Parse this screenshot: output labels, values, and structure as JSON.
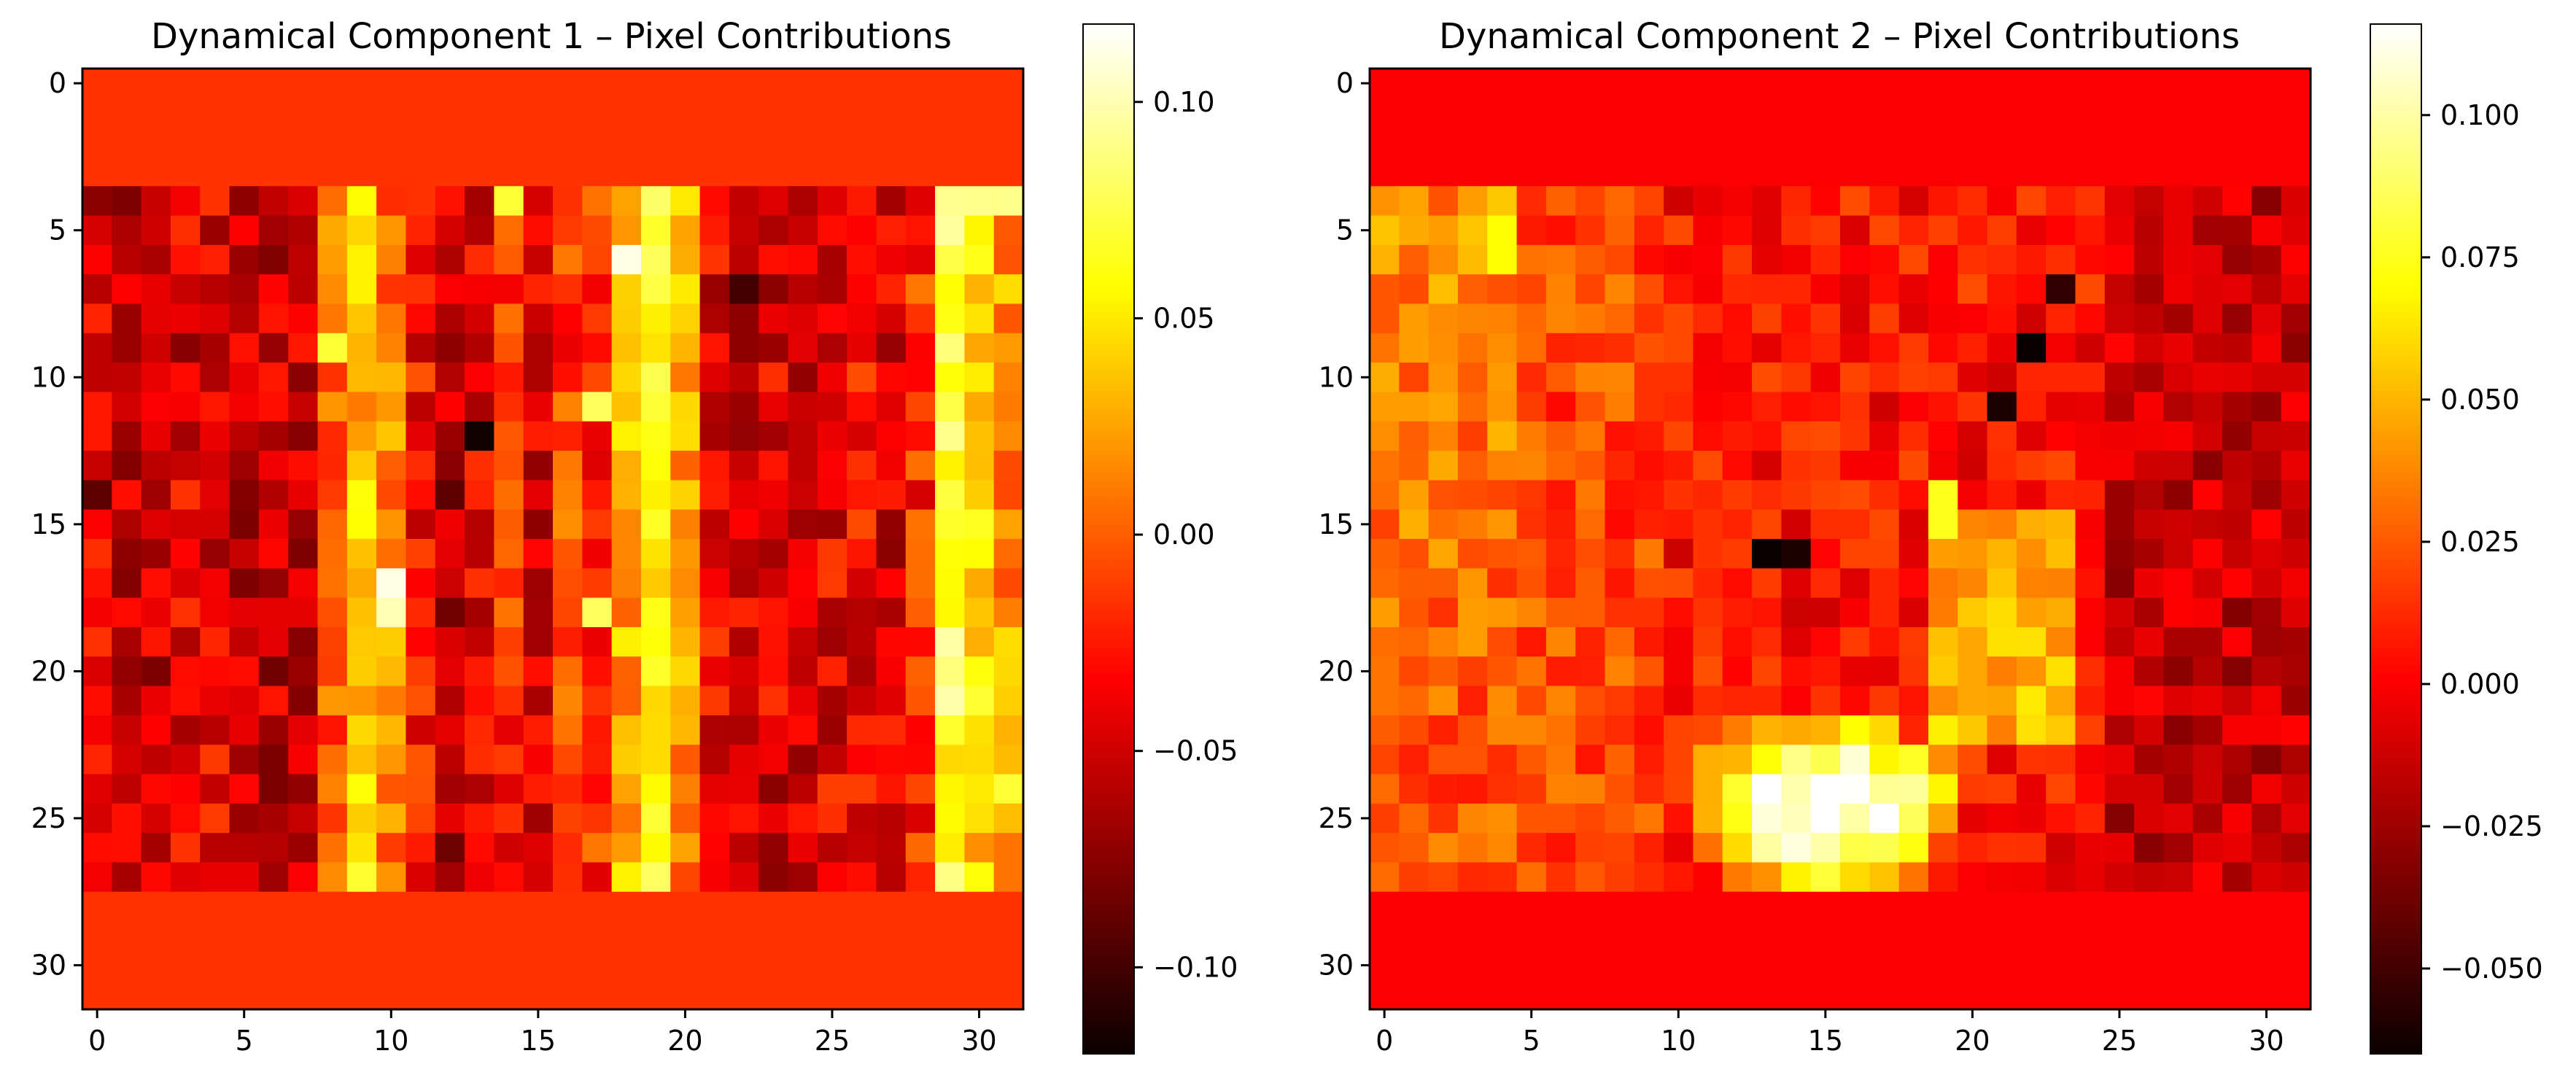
{
  "chart_data": [
    {
      "type": "heatmap",
      "title": "Dynamical Component 1 – Pixel Contributions",
      "colormap": "hot",
      "grid_size": [
        32,
        32
      ],
      "xlim": [
        -0.5,
        31.5
      ],
      "ylim": [
        31.5,
        -0.5
      ],
      "x_ticks": [
        0,
        5,
        10,
        15,
        20,
        25,
        30
      ],
      "y_ticks": [
        0,
        5,
        10,
        15,
        20,
        25,
        30
      ],
      "colorbar": {
        "vmin": -0.12,
        "vmax": 0.118,
        "ticks": [
          -0.1,
          -0.05,
          0.0,
          0.05,
          0.1
        ],
        "tick_labels": [
          "−0.10",
          "−0.05",
          "0.00",
          "0.05",
          "0.10"
        ]
      },
      "background_value": -0.015,
      "active_rows": [
        4,
        27
      ],
      "active_cols": [
        0,
        31
      ],
      "values_note_hidden": true,
      "column_profile": [
        -0.045,
        -0.05,
        -0.055,
        -0.045,
        -0.04,
        -0.05,
        -0.055,
        -0.05,
        0.0,
        0.04,
        0.01,
        -0.03,
        -0.055,
        -0.04,
        -0.02,
        -0.045,
        -0.01,
        -0.02,
        0.03,
        0.055,
        0.02,
        -0.04,
        -0.05,
        -0.045,
        -0.05,
        -0.04,
        -0.035,
        -0.045,
        -0.02,
        0.07,
        0.04,
        0.02
      ],
      "highlights": [
        {
          "x": 18,
          "y": 6,
          "value": 0.112
        },
        {
          "x": 10,
          "y": 17,
          "value": 0.112
        },
        {
          "x": 10,
          "y": 18,
          "value": 0.1
        },
        {
          "x": 13,
          "y": 12,
          "value": -0.118
        },
        {
          "x": 22,
          "y": 7,
          "value": -0.1
        },
        {
          "x": 0,
          "y": 14,
          "value": -0.09
        },
        {
          "x": 12,
          "y": 14,
          "value": -0.09
        },
        {
          "x": 8,
          "y": 9,
          "value": 0.07
        },
        {
          "x": 17,
          "y": 11,
          "value": 0.08
        },
        {
          "x": 17,
          "y": 18,
          "value": 0.08
        },
        {
          "x": 14,
          "y": 4,
          "value": 0.07
        },
        {
          "x": 30,
          "y": 4,
          "value": 0.09
        },
        {
          "x": 31,
          "y": 4,
          "value": 0.09
        },
        {
          "x": 31,
          "y": 24,
          "value": 0.07
        }
      ]
    },
    {
      "type": "heatmap",
      "title": "Dynamical Component 2 – Pixel Contributions",
      "colormap": "hot",
      "grid_size": [
        32,
        32
      ],
      "xlim": [
        -0.5,
        31.5
      ],
      "ylim": [
        31.5,
        -0.5
      ],
      "x_ticks": [
        0,
        5,
        10,
        15,
        20,
        25,
        30
      ],
      "y_ticks": [
        0,
        5,
        10,
        15,
        20,
        25,
        30
      ],
      "colorbar": {
        "vmin": -0.065,
        "vmax": 0.116,
        "ticks": [
          -0.05,
          -0.025,
          0.0,
          0.025,
          0.05,
          0.075,
          0.1
        ],
        "tick_labels": [
          "−0.050",
          "−0.025",
          "0.000",
          "0.025",
          "0.050",
          "0.075",
          "0.100"
        ]
      },
      "background_value": 0.0,
      "active_rows": [
        4,
        27
      ],
      "active_cols": [
        0,
        31
      ],
      "bright_blob": {
        "center_x": 15,
        "center_y": 24.5,
        "radius_x": 3.8,
        "radius_y": 2.6,
        "peak": 0.112
      },
      "highlights": [
        {
          "x": 13,
          "y": 16,
          "value": -0.065
        },
        {
          "x": 14,
          "y": 16,
          "value": -0.06
        },
        {
          "x": 22,
          "y": 9,
          "value": -0.065
        },
        {
          "x": 21,
          "y": 11,
          "value": -0.06
        },
        {
          "x": 23,
          "y": 7,
          "value": -0.055
        },
        {
          "x": 4,
          "y": 5,
          "value": 0.07
        },
        {
          "x": 4,
          "y": 6,
          "value": 0.07
        },
        {
          "x": 19,
          "y": 14,
          "value": 0.075
        },
        {
          "x": 19,
          "y": 15,
          "value": 0.075
        }
      ]
    }
  ]
}
